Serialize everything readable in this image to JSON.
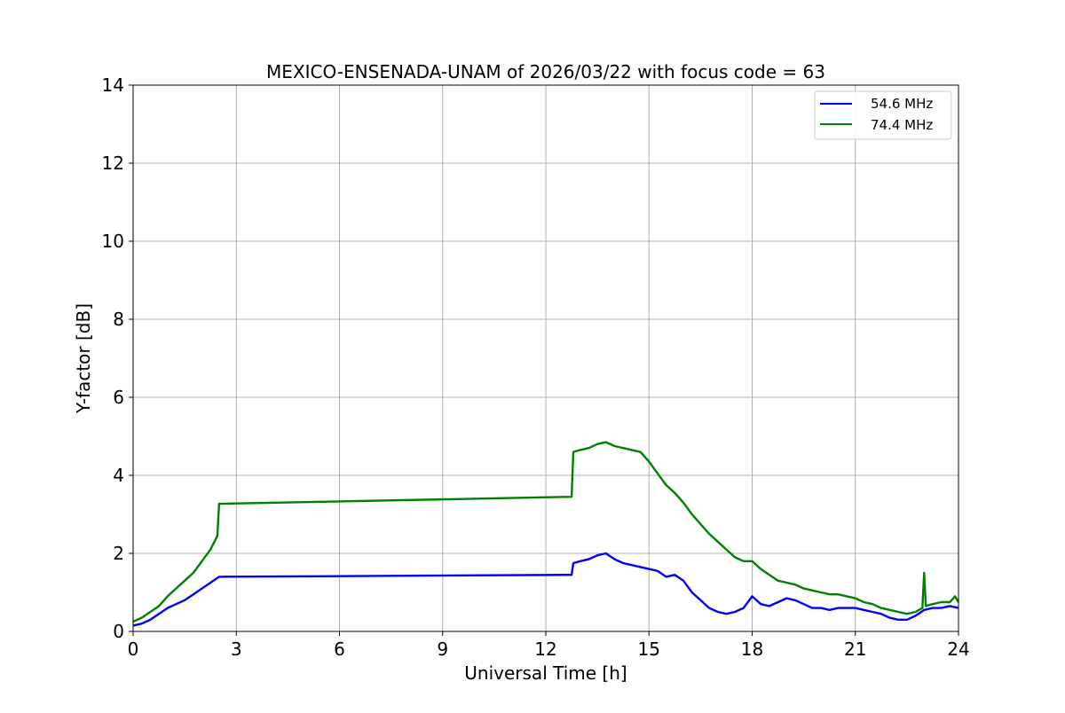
{
  "chart_data": {
    "type": "line",
    "title": "MEXICO-ENSENADA-UNAM of 2026/03/22 with focus code = 63",
    "xlabel": "Universal Time [h]",
    "ylabel": "Y-factor [dB]",
    "xlim": [
      0,
      24
    ],
    "ylim": [
      0,
      14
    ],
    "xticks": [
      0,
      3,
      6,
      9,
      12,
      15,
      18,
      21,
      24
    ],
    "yticks": [
      0,
      2,
      4,
      6,
      8,
      10,
      12,
      14
    ],
    "grid": true,
    "legend_position": "top-right",
    "series": [
      {
        "name": "54.6 MHz",
        "color": "#0000ff",
        "x": [
          0,
          0.25,
          0.5,
          0.75,
          1.0,
          1.25,
          1.5,
          1.75,
          2.0,
          2.25,
          2.5,
          12.75,
          12.8,
          13.0,
          13.25,
          13.5,
          13.75,
          14.0,
          14.25,
          14.5,
          14.75,
          15.0,
          15.25,
          15.5,
          15.75,
          16.0,
          16.25,
          16.5,
          16.75,
          17.0,
          17.25,
          17.5,
          17.75,
          18.0,
          18.25,
          18.5,
          18.75,
          19.0,
          19.25,
          19.5,
          19.75,
          20.0,
          20.25,
          20.5,
          20.75,
          21.0,
          21.25,
          21.5,
          21.75,
          22.0,
          22.25,
          22.5,
          22.75,
          23.0,
          23.25,
          23.5,
          23.75,
          24.0
        ],
        "y": [
          0.15,
          0.2,
          0.3,
          0.45,
          0.6,
          0.7,
          0.8,
          0.95,
          1.1,
          1.25,
          1.4,
          1.45,
          1.75,
          1.8,
          1.85,
          1.95,
          2.0,
          1.85,
          1.75,
          1.7,
          1.65,
          1.6,
          1.55,
          1.4,
          1.45,
          1.3,
          1.0,
          0.8,
          0.6,
          0.5,
          0.45,
          0.5,
          0.6,
          0.9,
          0.7,
          0.65,
          0.75,
          0.85,
          0.8,
          0.7,
          0.6,
          0.6,
          0.55,
          0.6,
          0.6,
          0.6,
          0.55,
          0.5,
          0.45,
          0.35,
          0.3,
          0.3,
          0.4,
          0.55,
          0.6,
          0.6,
          0.65,
          0.6
        ]
      },
      {
        "name": "74.4 MHz",
        "color": "#008000",
        "x": [
          0,
          0.25,
          0.5,
          0.75,
          1.0,
          1.25,
          1.5,
          1.75,
          2.0,
          2.25,
          2.45,
          2.5,
          12.75,
          12.8,
          13.0,
          13.25,
          13.5,
          13.75,
          14.0,
          14.25,
          14.5,
          14.75,
          15.0,
          15.25,
          15.5,
          15.75,
          16.0,
          16.25,
          16.5,
          16.75,
          17.0,
          17.25,
          17.5,
          17.75,
          18.0,
          18.25,
          18.5,
          18.75,
          19.0,
          19.25,
          19.5,
          19.75,
          20.0,
          20.25,
          20.5,
          20.75,
          21.0,
          21.25,
          21.5,
          21.75,
          22.0,
          22.25,
          22.5,
          22.75,
          22.95,
          23.0,
          23.05,
          23.25,
          23.5,
          23.75,
          23.9,
          24.0
        ],
        "y": [
          0.25,
          0.35,
          0.5,
          0.65,
          0.9,
          1.1,
          1.3,
          1.5,
          1.8,
          2.1,
          2.45,
          3.27,
          3.45,
          4.6,
          4.65,
          4.7,
          4.8,
          4.85,
          4.75,
          4.7,
          4.65,
          4.6,
          4.35,
          4.05,
          3.75,
          3.55,
          3.3,
          3.0,
          2.75,
          2.5,
          2.3,
          2.1,
          1.9,
          1.8,
          1.8,
          1.6,
          1.45,
          1.3,
          1.25,
          1.2,
          1.1,
          1.05,
          1.0,
          0.95,
          0.95,
          0.9,
          0.85,
          0.75,
          0.7,
          0.6,
          0.55,
          0.5,
          0.45,
          0.5,
          0.6,
          1.5,
          0.65,
          0.7,
          0.75,
          0.75,
          0.9,
          0.75
        ]
      }
    ]
  }
}
